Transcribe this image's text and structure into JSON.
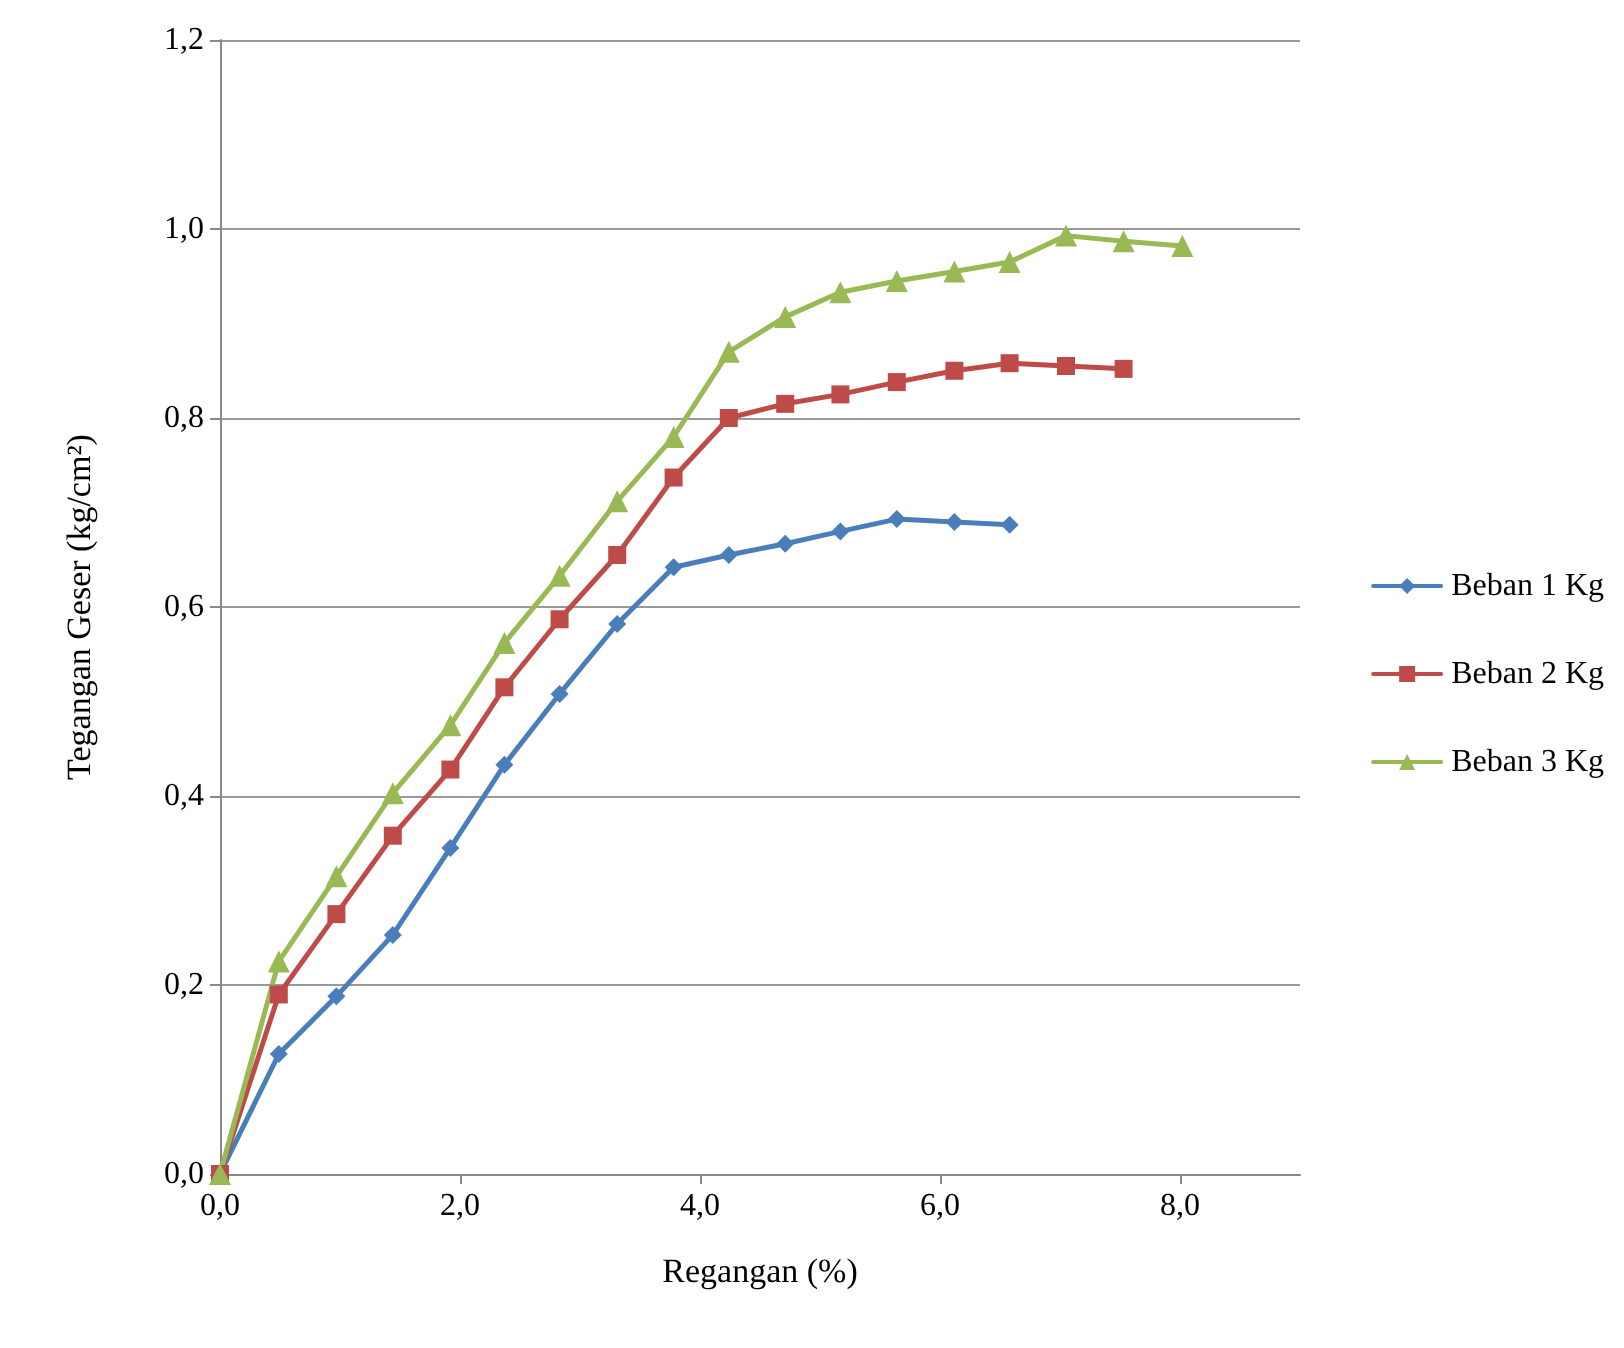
{
  "chart_data": {
    "type": "line",
    "xlabel": "Regangan (%)",
    "ylabel": "Tegangan Geser (kg/cm²)",
    "xlim": [
      0,
      9
    ],
    "xticks": [
      {
        "value": 0,
        "label": "0,0"
      },
      {
        "value": 2,
        "label": "2,0"
      },
      {
        "value": 4,
        "label": "4,0"
      },
      {
        "value": 6,
        "label": "6,0"
      },
      {
        "value": 8,
        "label": "8,0"
      }
    ],
    "ylim": [
      0,
      1.2
    ],
    "yticks": [
      {
        "value": 0,
        "label": "0,0"
      },
      {
        "value": 0.2,
        "label": "0,2"
      },
      {
        "value": 0.4,
        "label": "0,4"
      },
      {
        "value": 0.6,
        "label": "0,6"
      },
      {
        "value": 0.8,
        "label": "0,8"
      },
      {
        "value": 1,
        "label": "1,0"
      },
      {
        "value": 1.2,
        "label": "1,2"
      }
    ],
    "grid": "y",
    "legend": "right",
    "line_style": "solid",
    "series": [
      {
        "name": "Beban 1 Kg",
        "color": "#4a7ebb",
        "marker": "diamond",
        "x": [
          0,
          0.49,
          0.97,
          1.44,
          1.92,
          2.37,
          2.83,
          3.31,
          3.78,
          4.24,
          4.71,
          5.17,
          5.64,
          6.12,
          6.58
        ],
        "values": [
          0,
          0.127,
          0.188,
          0.253,
          0.345,
          0.433,
          0.508,
          0.582,
          0.642,
          0.655,
          0.667,
          0.68,
          0.693,
          0.69,
          0.687
        ]
      },
      {
        "name": "Beban 2 Kg",
        "color": "#be4b48",
        "marker": "square",
        "x": [
          0,
          0.49,
          0.97,
          1.44,
          1.92,
          2.37,
          2.83,
          3.31,
          3.78,
          4.24,
          4.71,
          5.17,
          5.64,
          6.12,
          6.58,
          7.05,
          7.53
        ],
        "values": [
          0,
          0.19,
          0.275,
          0.358,
          0.428,
          0.515,
          0.587,
          0.655,
          0.737,
          0.8,
          0.815,
          0.825,
          0.838,
          0.85,
          0.858,
          0.855,
          0.852
        ]
      },
      {
        "name": "Beban 3 Kg",
        "color": "#98b954",
        "marker": "triangle",
        "x": [
          0,
          0.49,
          0.97,
          1.44,
          1.92,
          2.37,
          2.83,
          3.31,
          3.78,
          4.24,
          4.71,
          5.17,
          5.64,
          6.12,
          6.58,
          7.05,
          7.53,
          8.02
        ],
        "values": [
          0,
          0.225,
          0.315,
          0.403,
          0.475,
          0.562,
          0.633,
          0.712,
          0.78,
          0.87,
          0.907,
          0.933,
          0.945,
          0.955,
          0.965,
          0.993,
          0.987,
          0.982
        ]
      }
    ]
  }
}
